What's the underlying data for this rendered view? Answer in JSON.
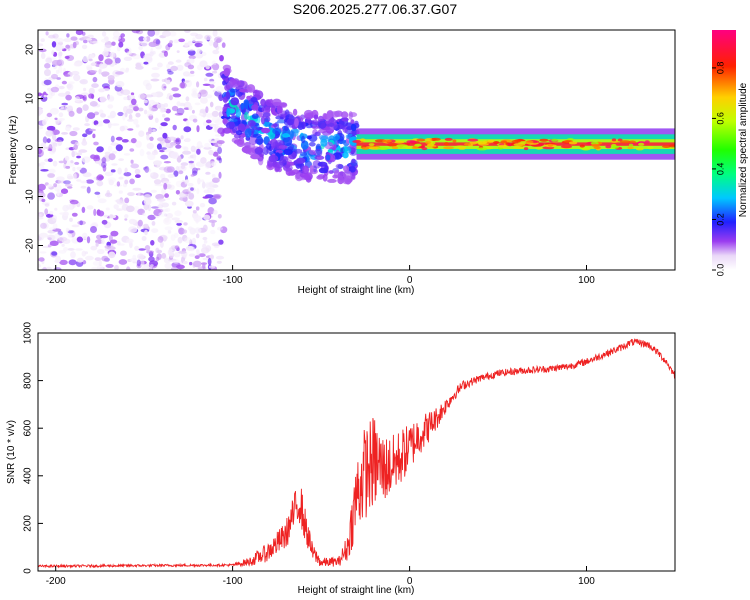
{
  "title": "S206.2025.277.06.37.G07",
  "chart_data": [
    {
      "type": "heatmap",
      "xlabel": "Height of straight line (km)",
      "ylabel": "Frequency (Hz)",
      "xlim": [
        -210,
        150
      ],
      "ylim": [
        -25,
        24
      ],
      "xticks": [
        "-200",
        "-100",
        "0",
        "100"
      ],
      "xtick_values": [
        -200,
        -100,
        0,
        100
      ],
      "yticks": [
        "20",
        "10",
        "0",
        "-10",
        "-20"
      ],
      "ytick_values": [
        20,
        10,
        0,
        -10,
        -20
      ],
      "colorbar": {
        "label": "Normalized spectral amplitude",
        "range": [
          0,
          0.95
        ],
        "ticks": [
          "0.0",
          "0.2",
          "0.4",
          "0.6",
          "0.8"
        ],
        "tick_values": [
          0.0,
          0.2,
          0.4,
          0.6,
          0.8
        ]
      },
      "regions": [
        {
          "x_range": [
            -210,
            -105
          ],
          "y_range": [
            -25,
            24
          ],
          "amplitude": [
            0.02,
            0.1
          ],
          "description": "noise"
        },
        {
          "x_range": [
            -105,
            -30
          ],
          "y_center_trend": [
            [
              -105,
              10
            ],
            [
              -80,
              3
            ],
            [
              -55,
              0
            ],
            [
              -30,
              0
            ]
          ],
          "amplitude": [
            0.1,
            0.35
          ]
        },
        {
          "x_range": [
            -30,
            150
          ],
          "y_center": 0.7,
          "amplitude": [
            0.5,
            0.95
          ]
        }
      ]
    },
    {
      "type": "line",
      "xlabel": "Height of straight line (km)",
      "ylabel": "SNR (10 * v/v)",
      "xlim": [
        -210,
        150
      ],
      "ylim": [
        0,
        1000
      ],
      "xticks": [
        "-200",
        "-100",
        "0",
        "100"
      ],
      "xtick_values": [
        -200,
        -100,
        0,
        100
      ],
      "yticks": [
        "0",
        "200",
        "400",
        "600",
        "800",
        "1000"
      ],
      "ytick_values": [
        0,
        200,
        400,
        600,
        800,
        1000
      ],
      "series": [
        {
          "name": "SNR",
          "color": "#ee2222",
          "envelope_x": [
            -210,
            -100,
            -90,
            -80,
            -70,
            -65,
            -62,
            -60,
            -55,
            -50,
            -40,
            -35,
            -30,
            -25,
            -20,
            -15,
            -10,
            -5,
            0,
            5,
            10,
            15,
            20,
            25,
            30,
            40,
            50,
            60,
            70,
            80,
            90,
            100,
            110,
            120,
            125,
            130,
            135,
            140,
            145,
            150
          ],
          "envelope_y": [
            20,
            25,
            40,
            80,
            150,
            250,
            300,
            220,
            80,
            35,
            40,
            100,
            320,
            420,
            460,
            430,
            440,
            480,
            520,
            570,
            600,
            640,
            690,
            740,
            780,
            810,
            830,
            840,
            845,
            850,
            860,
            880,
            910,
            940,
            960,
            960,
            950,
            920,
            880,
            820
          ],
          "amplitude": [
            5,
            5,
            20,
            40,
            60,
            80,
            100,
            80,
            40,
            20,
            20,
            60,
            170,
            200,
            200,
            150,
            130,
            120,
            100,
            90,
            70,
            50,
            35,
            25,
            20,
            15,
            15,
            15,
            15,
            15,
            15,
            15,
            15,
            15,
            15,
            15,
            15,
            15,
            15,
            15
          ]
        }
      ]
    }
  ]
}
